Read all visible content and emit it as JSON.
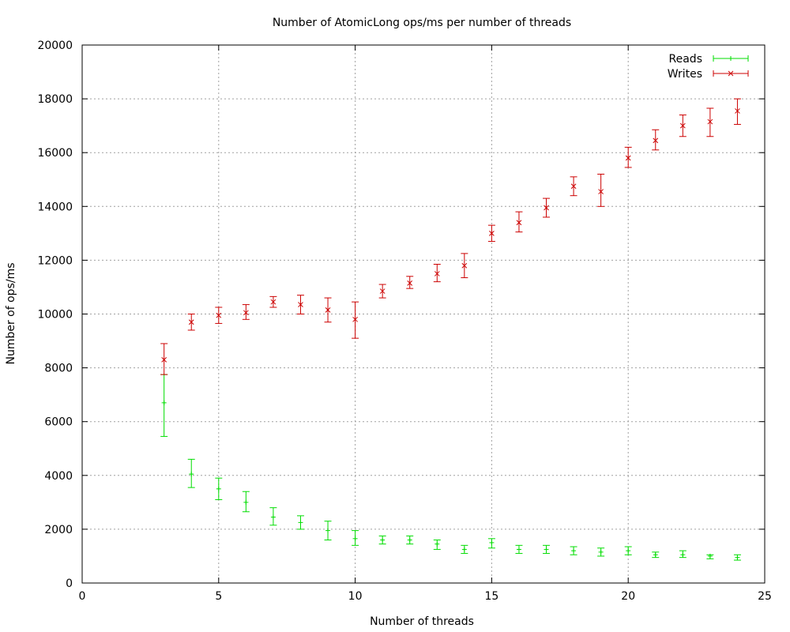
{
  "chart_data": {
    "type": "scatter",
    "title": "Number of AtomicLong ops/ms per number of threads",
    "xlabel": "Number of threads",
    "ylabel": "Number of ops/ms",
    "xlim": [
      0,
      25
    ],
    "ylim": [
      0,
      20000
    ],
    "xticks": [
      "0",
      "5",
      "10",
      "15",
      "20",
      "25"
    ],
    "yticks": [
      "0",
      "2000",
      "4000",
      "6000",
      "8000",
      "10000",
      "12000",
      "14000",
      "16000",
      "18000",
      "20000"
    ],
    "grid": true,
    "legend_position": "top-right",
    "series": [
      {
        "name": "Reads",
        "color": "#00dd00",
        "marker": "plus",
        "points": [
          {
            "x": 3,
            "y": 6700,
            "low": 5450,
            "high": 7750
          },
          {
            "x": 4,
            "y": 4050,
            "low": 3550,
            "high": 4600
          },
          {
            "x": 5,
            "y": 3500,
            "low": 3100,
            "high": 3900
          },
          {
            "x": 6,
            "y": 3000,
            "low": 2650,
            "high": 3400
          },
          {
            "x": 7,
            "y": 2450,
            "low": 2150,
            "high": 2800
          },
          {
            "x": 8,
            "y": 2250,
            "low": 2000,
            "high": 2500
          },
          {
            "x": 9,
            "y": 1950,
            "low": 1600,
            "high": 2300
          },
          {
            "x": 10,
            "y": 1650,
            "low": 1400,
            "high": 1950
          },
          {
            "x": 11,
            "y": 1600,
            "low": 1450,
            "high": 1750
          },
          {
            "x": 12,
            "y": 1600,
            "low": 1450,
            "high": 1750
          },
          {
            "x": 13,
            "y": 1450,
            "low": 1250,
            "high": 1600
          },
          {
            "x": 14,
            "y": 1250,
            "low": 1100,
            "high": 1400
          },
          {
            "x": 15,
            "y": 1500,
            "low": 1300,
            "high": 1650
          },
          {
            "x": 16,
            "y": 1250,
            "low": 1100,
            "high": 1400
          },
          {
            "x": 17,
            "y": 1250,
            "low": 1100,
            "high": 1400
          },
          {
            "x": 18,
            "y": 1200,
            "low": 1050,
            "high": 1350
          },
          {
            "x": 19,
            "y": 1150,
            "low": 1000,
            "high": 1300
          },
          {
            "x": 20,
            "y": 1200,
            "low": 1050,
            "high": 1350
          },
          {
            "x": 21,
            "y": 1050,
            "low": 950,
            "high": 1150
          },
          {
            "x": 22,
            "y": 1050,
            "low": 950,
            "high": 1200
          },
          {
            "x": 23,
            "y": 1000,
            "low": 900,
            "high": 1050
          },
          {
            "x": 24,
            "y": 950,
            "low": 850,
            "high": 1050
          }
        ]
      },
      {
        "name": "Writes",
        "color": "#cc0000",
        "marker": "cross",
        "points": [
          {
            "x": 3,
            "y": 8300,
            "low": 7750,
            "high": 8900
          },
          {
            "x": 4,
            "y": 9700,
            "low": 9400,
            "high": 10000
          },
          {
            "x": 5,
            "y": 9950,
            "low": 9650,
            "high": 10250
          },
          {
            "x": 6,
            "y": 10050,
            "low": 9800,
            "high": 10350
          },
          {
            "x": 7,
            "y": 10450,
            "low": 10250,
            "high": 10650
          },
          {
            "x": 8,
            "y": 10350,
            "low": 10000,
            "high": 10700
          },
          {
            "x": 9,
            "y": 10150,
            "low": 9700,
            "high": 10600
          },
          {
            "x": 10,
            "y": 9800,
            "low": 9100,
            "high": 10450
          },
          {
            "x": 11,
            "y": 10850,
            "low": 10600,
            "high": 11100
          },
          {
            "x": 12,
            "y": 11150,
            "low": 10950,
            "high": 11400
          },
          {
            "x": 13,
            "y": 11500,
            "low": 11200,
            "high": 11850
          },
          {
            "x": 14,
            "y": 11800,
            "low": 11350,
            "high": 12250
          },
          {
            "x": 15,
            "y": 13000,
            "low": 12700,
            "high": 13300
          },
          {
            "x": 16,
            "y": 13400,
            "low": 13050,
            "high": 13800
          },
          {
            "x": 17,
            "y": 13950,
            "low": 13600,
            "high": 14300
          },
          {
            "x": 18,
            "y": 14750,
            "low": 14400,
            "high": 15100
          },
          {
            "x": 19,
            "y": 14550,
            "low": 14000,
            "high": 15200
          },
          {
            "x": 20,
            "y": 15800,
            "low": 15450,
            "high": 16200
          },
          {
            "x": 21,
            "y": 16450,
            "low": 16100,
            "high": 16850
          },
          {
            "x": 22,
            "y": 17000,
            "low": 16600,
            "high": 17400
          },
          {
            "x": 23,
            "y": 17150,
            "low": 16600,
            "high": 17650
          },
          {
            "x": 24,
            "y": 17550,
            "low": 17050,
            "high": 18000
          }
        ]
      }
    ]
  }
}
